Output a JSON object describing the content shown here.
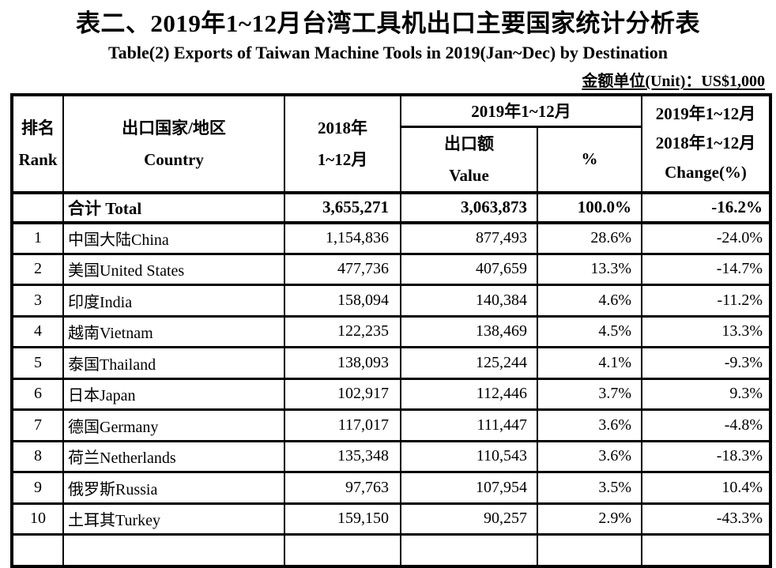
{
  "page": {
    "title_zh": "表二、2019年1~12月台湾工具机出口主要国家统计分析表",
    "title_en": "Table(2) Exports of Taiwan  Machine Tools in 2019(Jan~Dec) by Destination",
    "unit_note": "金额单位(Unit)：US$1,000"
  },
  "chart_data": {
    "type": "table",
    "title": "表二、2019年1~12月台湾工具机出口主要国家统计分析表",
    "subtitle": "Table(2) Exports of Taiwan  Machine Tools in 2019(Jan~Dec) by Destination",
    "unit": "US$1,000",
    "columns": [
      "Rank",
      "Country",
      "2018 Jan~Dec",
      "2019 Jan~Dec Value",
      "2019 share %",
      "Change(%)"
    ],
    "rows": [
      [
        "",
        "合计 Total",
        "3,655,271",
        "3,063,873",
        "100.0%",
        "-16.2%"
      ],
      [
        "1",
        "中国大陆China",
        "1,154,836",
        "877,493",
        "28.6%",
        "-24.0%"
      ],
      [
        "2",
        "美国United States",
        "477,736",
        "407,659",
        "13.3%",
        "-14.7%"
      ],
      [
        "3",
        "印度India",
        "158,094",
        "140,384",
        "4.6%",
        "-11.2%"
      ],
      [
        "4",
        "越南Vietnam",
        "122,235",
        "138,469",
        "4.5%",
        "13.3%"
      ],
      [
        "5",
        "泰国Thailand",
        "138,093",
        "125,244",
        "4.1%",
        "-9.3%"
      ],
      [
        "6",
        "日本Japan",
        "102,917",
        "112,446",
        "3.7%",
        "9.3%"
      ],
      [
        "7",
        "德国Germany",
        "117,017",
        "111,447",
        "3.6%",
        "-4.8%"
      ],
      [
        "8",
        "荷兰Netherlands",
        "135,348",
        "110,543",
        "3.6%",
        "-18.3%"
      ],
      [
        "9",
        "俄罗斯Russia",
        "97,763",
        "107,954",
        "3.5%",
        "10.4%"
      ],
      [
        "10",
        "土耳其Turkey",
        "159,150",
        "90,257",
        "2.9%",
        "-43.3%"
      ]
    ]
  },
  "table": {
    "headers": {
      "rank_zh": "排名",
      "rank_en": "Rank",
      "country_zh": "出口国家/地区",
      "country_en": "Country",
      "y2018_line1": "2018年",
      "y2018_line2": "1~12月",
      "y2019_span": "2019年1~12月",
      "value_zh": "出口额",
      "value_en": "Value",
      "pct": "%",
      "change_line1": "2019年1~12月",
      "change_line2": "2018年1~12月",
      "change_line3": "Change(%)"
    },
    "total_row": {
      "rank": "",
      "country": "合计 Total",
      "value_2018": "3,655,271",
      "value_2019": "3,063,873",
      "share": "100.0%",
      "change": "-16.2%"
    },
    "rows": [
      {
        "rank": "1",
        "country": "中国大陆China",
        "value_2018": "1,154,836",
        "value_2019": "877,493",
        "share": "28.6%",
        "change": "-24.0%"
      },
      {
        "rank": "2",
        "country": "美国United States",
        "value_2018": "477,736",
        "value_2019": "407,659",
        "share": "13.3%",
        "change": "-14.7%"
      },
      {
        "rank": "3",
        "country": "印度India",
        "value_2018": "158,094",
        "value_2019": "140,384",
        "share": "4.6%",
        "change": "-11.2%"
      },
      {
        "rank": "4",
        "country": "越南Vietnam",
        "value_2018": "122,235",
        "value_2019": "138,469",
        "share": "4.5%",
        "change": "13.3%"
      },
      {
        "rank": "5",
        "country": "泰国Thailand",
        "value_2018": "138,093",
        "value_2019": "125,244",
        "share": "4.1%",
        "change": "-9.3%"
      },
      {
        "rank": "6",
        "country": "日本Japan",
        "value_2018": "102,917",
        "value_2019": "112,446",
        "share": "3.7%",
        "change": "9.3%"
      },
      {
        "rank": "7",
        "country": "德国Germany",
        "value_2018": "117,017",
        "value_2019": "111,447",
        "share": "3.6%",
        "change": "-4.8%"
      },
      {
        "rank": "8",
        "country": "荷兰Netherlands",
        "value_2018": "135,348",
        "value_2019": "110,543",
        "share": "3.6%",
        "change": "-18.3%"
      },
      {
        "rank": "9",
        "country": "俄罗斯Russia",
        "value_2018": "97,763",
        "value_2019": "107,954",
        "share": "3.5%",
        "change": "10.4%"
      },
      {
        "rank": "10",
        "country": "土耳其Turkey",
        "value_2018": "159,150",
        "value_2019": "90,257",
        "share": "2.9%",
        "change": "-43.3%"
      }
    ]
  }
}
